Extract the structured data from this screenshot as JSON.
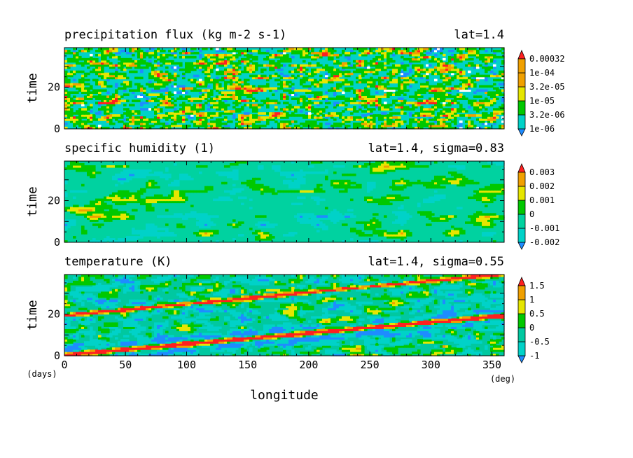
{
  "chart_data": [
    {
      "type": "heatmap",
      "title": "precipitation flux (kg m-2 s-1)",
      "subtitle": "lat=1.4",
      "ylabel": "time",
      "xlim": [
        0,
        360
      ],
      "ylim": [
        0,
        39
      ],
      "x_ticks": [
        "0",
        "50",
        "100",
        "150",
        "200",
        "250",
        "300",
        "350"
      ],
      "y_ticks": [
        "0",
        "20"
      ],
      "colorbar_labels": [
        "1e-06",
        "3.2e-06",
        "1e-05",
        "3.2e-05",
        "1e-04",
        "0.00032"
      ],
      "colors": [
        "#ffffff",
        "#1e8cff",
        "#00d2c8",
        "#00c800",
        "#e6e600",
        "#f0a000",
        "#ff2020"
      ]
    },
    {
      "type": "heatmap",
      "title": "specific humidity (1)",
      "subtitle": "lat=1.4, sigma=0.83",
      "ylabel": "time",
      "xlim": [
        0,
        360
      ],
      "ylim": [
        0,
        39
      ],
      "y_ticks": [
        "0",
        "20"
      ],
      "colorbar_labels": [
        "-0.002",
        "-0.001",
        "0",
        "0.001",
        "0.002",
        "0.003"
      ],
      "colors": [
        "#1e8cff",
        "#00d2c8",
        "#00d2a0",
        "#00c800",
        "#e6e600",
        "#f0a000",
        "#ff2020"
      ]
    },
    {
      "type": "heatmap",
      "title": "temperature (K)",
      "subtitle": "lat=1.4, sigma=0.55",
      "ylabel": "time",
      "xlabel": "longitude",
      "xlim": [
        0,
        360
      ],
      "ylim": [
        0,
        39
      ],
      "x_ticks": [
        "0",
        "50",
        "100",
        "150",
        "200",
        "250",
        "300",
        "350"
      ],
      "y_ticks": [
        "0",
        "20"
      ],
      "x_unit": "(deg)",
      "y_unit": "(days)",
      "colorbar_labels": [
        "-1",
        "-0.5",
        "0",
        "0.5",
        "1",
        "1.5"
      ],
      "colors": [
        "#1e8cff",
        "#00d2c8",
        "#00c8a0",
        "#00c800",
        "#e6e600",
        "#f0a000",
        "#ff2020"
      ]
    }
  ]
}
